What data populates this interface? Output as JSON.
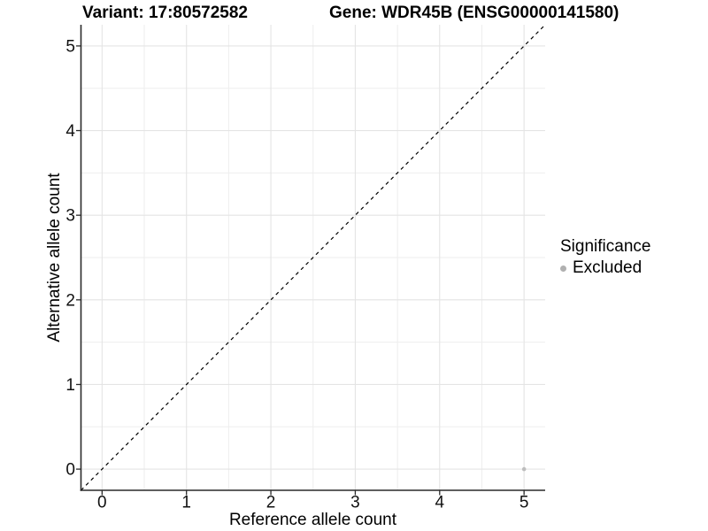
{
  "chart_data": {
    "type": "scatter",
    "titles": [
      "Variant: 17:80572582",
      "Gene: WDR45B (ENSG00000141580)"
    ],
    "xlabel": "Reference allele count",
    "ylabel": "Alternative allele count",
    "xlim": [
      -0.25,
      5.25
    ],
    "ylim": [
      -0.25,
      5.25
    ],
    "xticks": [
      0,
      1,
      2,
      3,
      4,
      5
    ],
    "yticks": [
      0,
      1,
      2,
      3,
      4,
      5
    ],
    "xticks_minor": [
      0.5,
      1.5,
      2.5,
      3.5,
      4.5
    ],
    "yticks_minor": [
      0.5,
      1.5,
      2.5,
      3.5,
      4.5
    ],
    "grid": true,
    "identity_line": {
      "type": "identity",
      "style": "dashed",
      "color": "#000000",
      "from": -0.25,
      "to": 5.25
    },
    "series": [
      {
        "name": "Excluded",
        "color": "#bdbdbd",
        "points": [
          {
            "x": 5,
            "y": 0
          }
        ]
      }
    ],
    "legend": {
      "title": "Significance",
      "position": "right",
      "entries": [
        {
          "label": "Excluded",
          "color": "#b0b0b0"
        }
      ]
    }
  }
}
